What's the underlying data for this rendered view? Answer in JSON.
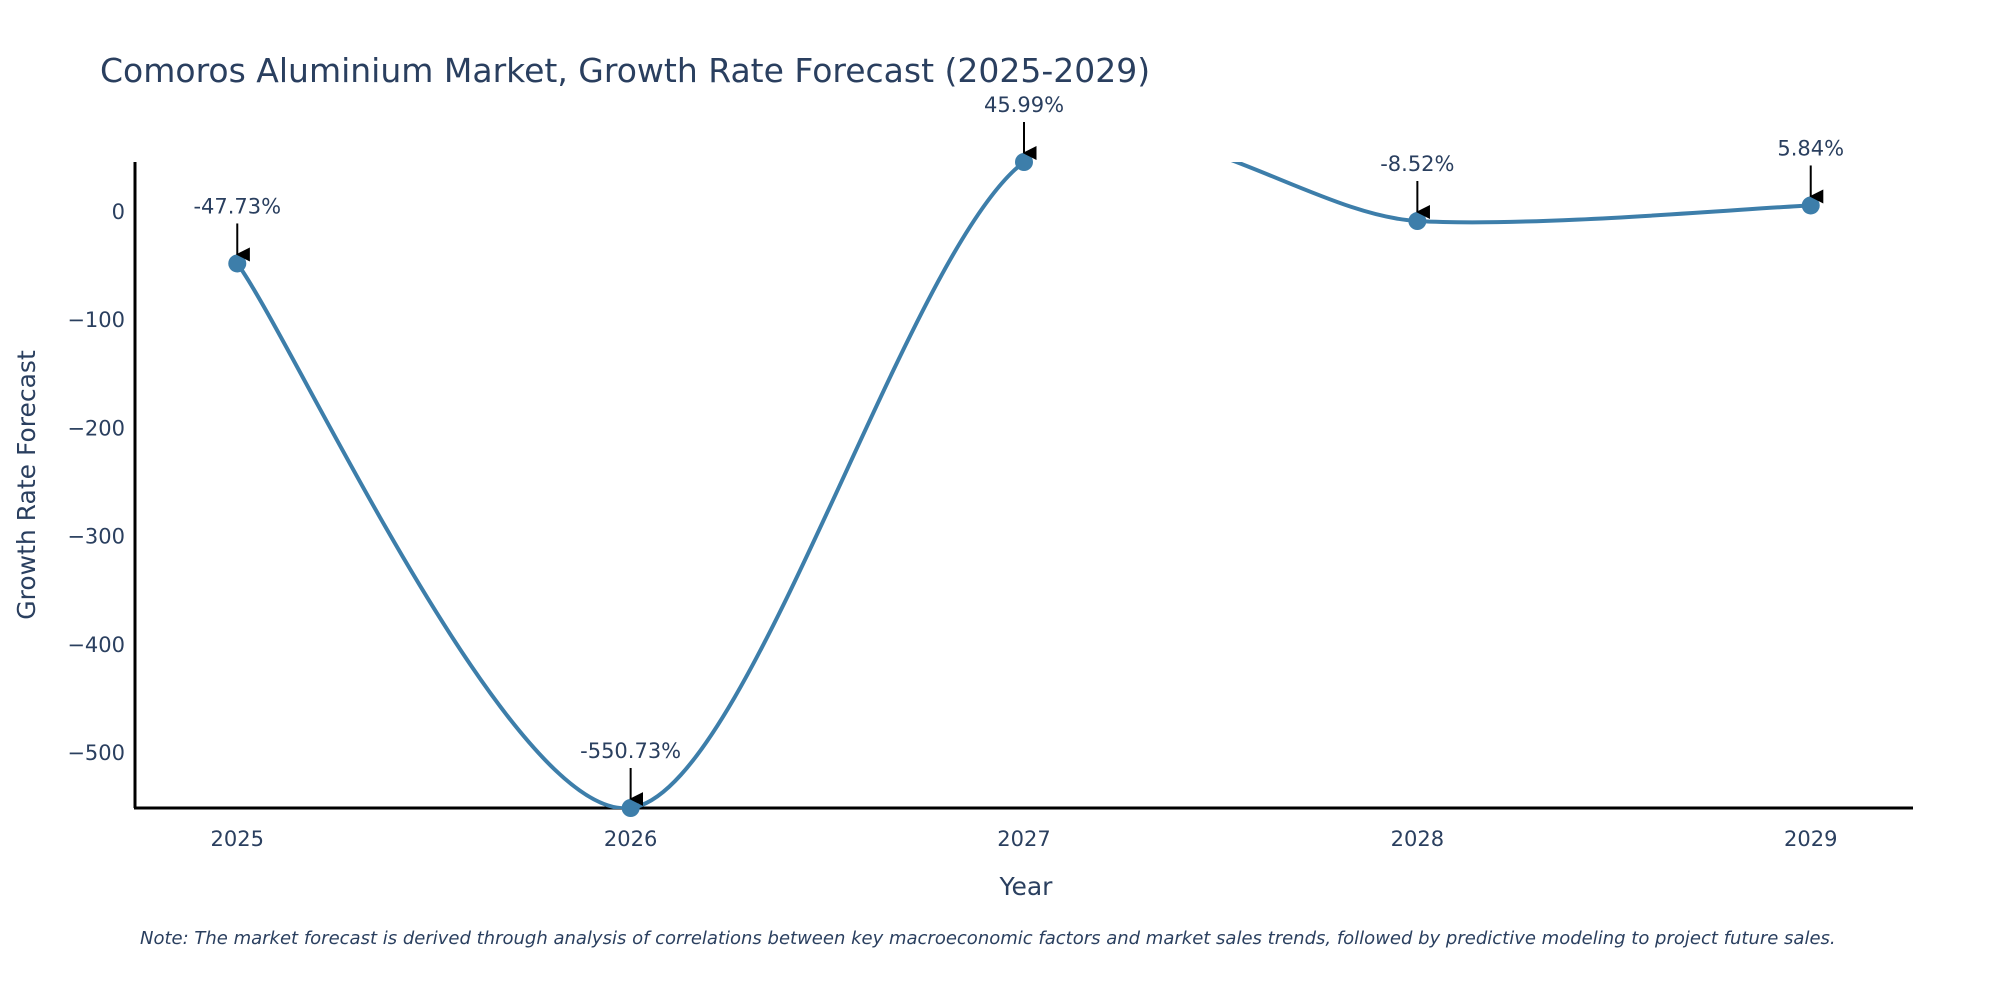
{
  "chart_data": {
    "type": "line",
    "title": "Comoros Aluminium Market, Growth Rate Forecast (2025-2029)",
    "xlabel": "Year",
    "ylabel": "Growth Rate Forecast",
    "x": [
      "2025",
      "2026",
      "2027",
      "2028",
      "2029"
    ],
    "values": [
      -47.73,
      -550.73,
      45.99,
      -8.52,
      5.84
    ],
    "annotations": [
      "-47.73%",
      "-550.73%",
      "45.99%",
      "-8.52%",
      "5.84%"
    ],
    "yticks": [
      0,
      -100,
      -200,
      -300,
      -400,
      -500
    ],
    "ytick_labels": [
      "0",
      "−100",
      "−200",
      "−300",
      "−400",
      "−500"
    ],
    "ylim": [
      -550.73,
      45.99
    ],
    "xlim": [
      -0.26,
      4.26
    ],
    "grid": false,
    "line_color": "#3d7eaa",
    "note": "Note: The market forecast is derived through analysis of correlations between key macroeconomic factors and market sales trends, followed by predictive modeling to project future sales."
  }
}
